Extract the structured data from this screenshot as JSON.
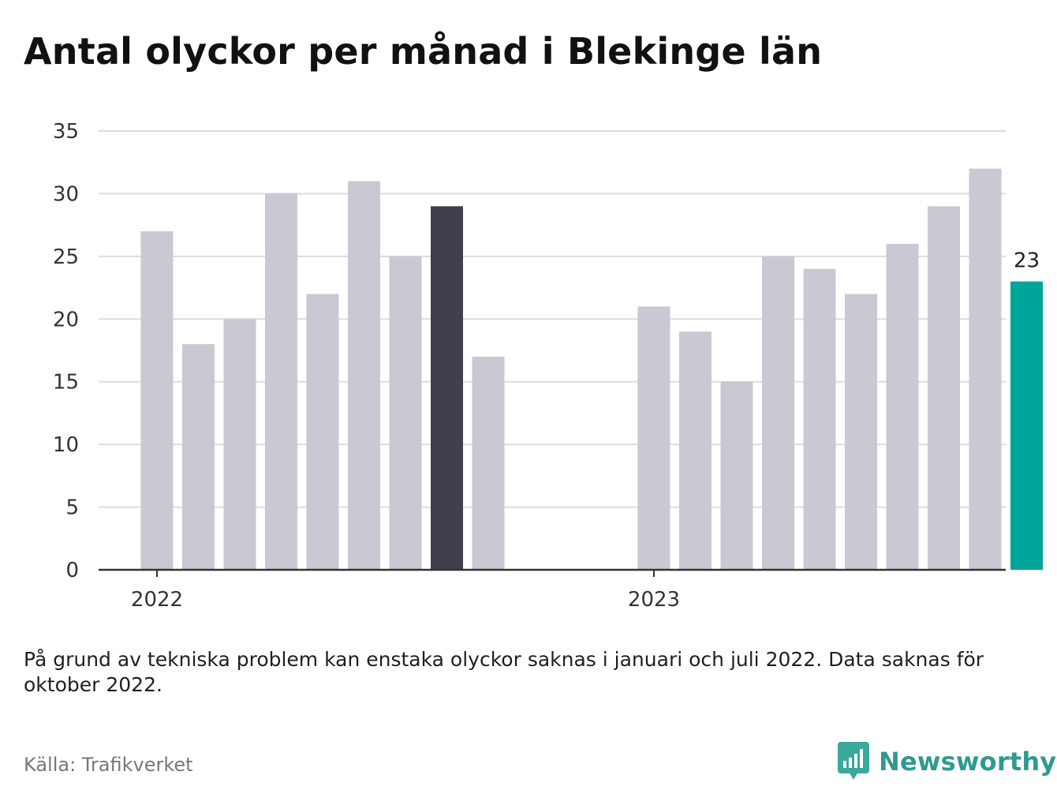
{
  "title": "Antal olyckor per månad i Blekinge län",
  "note": "På grund av tekniska problem kan enstaka olyckor saknas i januari och juli 2022. Data saknas för oktober 2022.",
  "source": "Källa: Trafikverket",
  "brand": {
    "name": "Newsworthy"
  },
  "colors": {
    "bar_default": "#c9c8d3",
    "bar_highlight": "#413f4e",
    "bar_latest": "#00a59a",
    "grid": "#dddddd",
    "axis": "#333333",
    "brand": "#2f9a8f"
  },
  "chart_data": {
    "type": "bar",
    "title": "Antal olyckor per månad i Blekinge län",
    "xlabel": "",
    "ylabel": "",
    "ylim": [
      0,
      35
    ],
    "yticks": [
      0,
      5,
      10,
      15,
      20,
      25,
      30,
      35
    ],
    "x_axis_labels": [
      "2022",
      "2023"
    ],
    "grid": true,
    "x": [
      "2022-01",
      "2022-02",
      "2022-03",
      "2022-04",
      "2022-05",
      "2022-06",
      "2022-07",
      "2022-08",
      "2022-09",
      "2022-10",
      "2022-11",
      "2022-12",
      "2023-01",
      "2023-02",
      "2023-03",
      "2023-04",
      "2023-05",
      "2023-06",
      "2023-07",
      "2023-08",
      "2023-09",
      "2023-10",
      "2023-11",
      "2023-12"
    ],
    "values": [
      27,
      18,
      20,
      30,
      22,
      31,
      25,
      29,
      17,
      null,
      null,
      null,
      21,
      19,
      15,
      25,
      24,
      22,
      26,
      29,
      32,
      23,
      null,
      null
    ],
    "highlight": {
      "2022-08": "bar_highlight",
      "2023-10": "bar_latest"
    },
    "data_labels": [
      {
        "x": "2023-10",
        "value": 23
      }
    ]
  }
}
